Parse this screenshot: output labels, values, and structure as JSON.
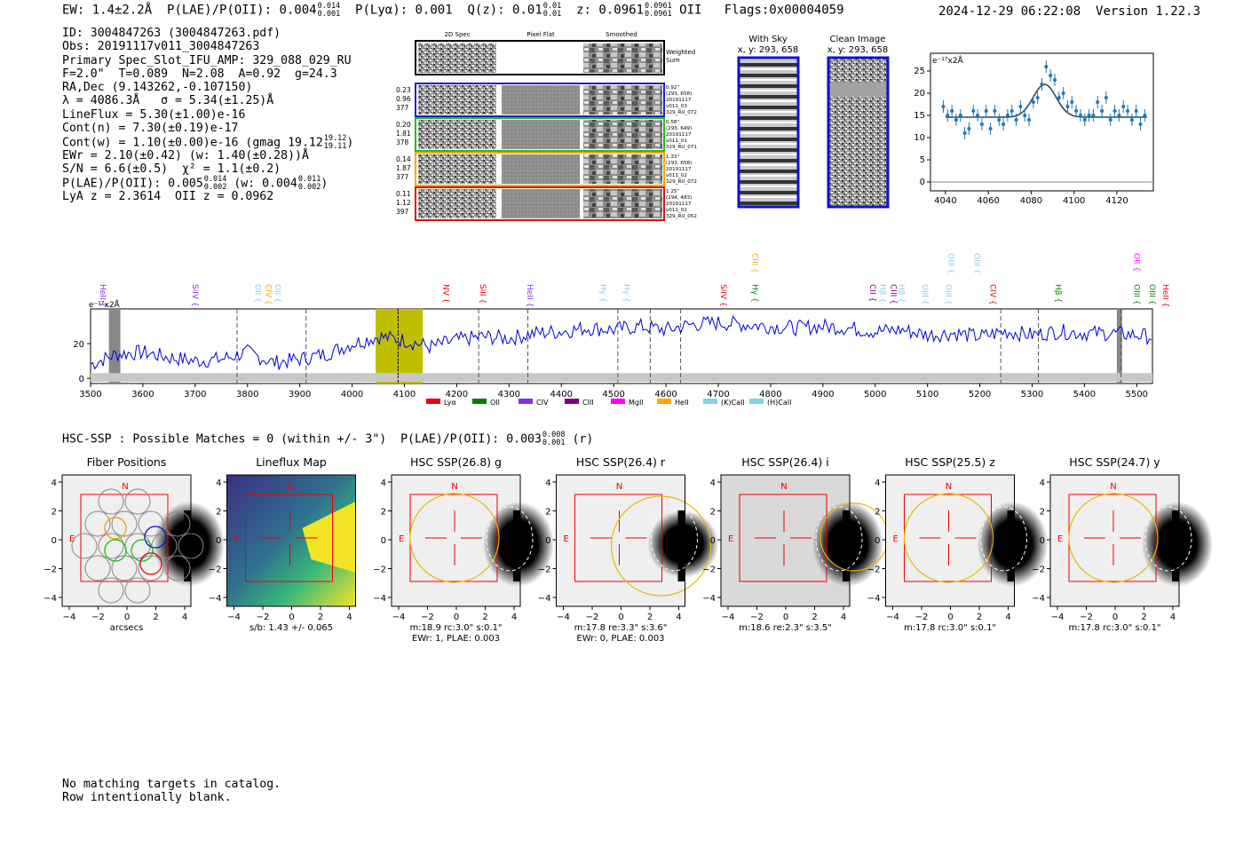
{
  "header": {
    "ew": "EW: 1.4±2.2Å",
    "plae_label": "P(LAE)/P(OII): 0.004",
    "plae_hi": "0.014",
    "plae_lo": "0.001",
    "plya": "P(Lyα): 0.001",
    "qz_label": "Q(z): 0.01",
    "qz_hi": "0.01",
    "qz_lo": "0.01",
    "z_label": "z: 0.0961",
    "z_hi": "0.0961",
    "z_lo": "0.0961",
    "z_line": "OII",
    "flags": "Flags:0x00004059",
    "timestamp": "2024-12-29 06:22:08",
    "version": "Version 1.22.3"
  },
  "info": {
    "id": "ID: 3004847263 (3004847263.pdf)",
    "obs": "Obs: 20191117v011_3004847263",
    "primary": "Primary Spec_Slot_IFU_AMP: 329_088_029_RU",
    "fparams": "F=2.0\"  T=0.089  N=2.08  A=0.92  g=24.3",
    "radec": "RA,Dec (9.143262,-0.107150)",
    "lambda": "λ = 4086.3Å   σ = 5.34(±1.25)Å",
    "lineflux": "LineFlux = 5.30(±1.00)e-16",
    "contn": "Cont(n) = 7.30(±0.19)e-17",
    "contw": "Cont(w) = 1.10(±0.00)e-16 (gmag 19.12",
    "gmag_hi": "19.12",
    "gmag_lo": "19.11",
    "ewr": "EWr = 2.10(±0.42) (w: 1.40(±0.28))Å",
    "sn": "S/N = 6.6(±0.5)  χ² = 1.1(±0.2)",
    "plae": "P(LAE)/P(OII): 0.005",
    "plae_hi": "0.014",
    "plae_lo": "0.002",
    "plae_w": "(w: 0.004",
    "plae_w_hi": "0.011",
    "plae_w_lo": "0.002",
    "lya": "LyA z = 2.3614  OII z = 0.0962"
  },
  "cutouts": {
    "col_2d": "2D Spec",
    "col_flat": "Pixel Flat",
    "col_smooth": "Smoothed",
    "weighted": "Weighted",
    "sum": "Sum",
    "rows": [
      {
        "left": [
          "0.23",
          "0.96",
          "377"
        ],
        "right": [
          "0.92\"",
          "(293, 658)",
          "20191117",
          "v011_03",
          "329_RU_072"
        ],
        "color": "#1f1fcc"
      },
      {
        "left": [
          "0.20",
          "1.81",
          "378"
        ],
        "right": [
          "0.58\"",
          "(293, 649)",
          "20191117",
          "v011_01",
          "329_RU_071"
        ],
        "color": "#22bb22"
      },
      {
        "left": [
          "0.14",
          "1.87",
          "377"
        ],
        "right": [
          "1.33\"",
          "(293, 658)",
          "20191117",
          "v011_02",
          "329_RU_072"
        ],
        "color": "#f5a800"
      },
      {
        "left": [
          "0.11",
          "1.12",
          "397"
        ],
        "right": [
          "1.25\"",
          "(294, 483)",
          "20191117",
          "v011_02",
          "329_RU_052"
        ],
        "color": "#dd1111"
      }
    ]
  },
  "sky": {
    "with_sky": "With Sky",
    "with_sky_xy": "x, y: 293, 658",
    "clean": "Clean Image",
    "clean_xy": "x, y: 293, 658"
  },
  "zoom_chart": {
    "ylabel": "e⁻¹⁷x2Å",
    "xticks": [
      "4040",
      "4060",
      "4080",
      "4100",
      "4120"
    ],
    "yticks": [
      "0",
      "5",
      "10",
      "15",
      "20",
      "25"
    ]
  },
  "lines_legend": [
    "Lyα",
    "OII",
    "CIV",
    "CIII",
    "MgII",
    "HeII",
    "(K)CaII",
    "(H)CaII"
  ],
  "lines_legend_colors": [
    "#e8000b",
    "#008000",
    "#8b2be2",
    "#800080",
    "#ff00ff",
    "#ffa500",
    "#87ceeb",
    "#87ceeb"
  ],
  "spec_lines": [
    {
      "name": "HeII",
      "w": 3514,
      "c": "#8b2be2"
    },
    {
      "name": "SiIV",
      "w": 3690,
      "c": "#8b2be2"
    },
    {
      "name": "OII",
      "w": 3810,
      "c": "#87ceeb"
    },
    {
      "name": "CIV",
      "w": 3830,
      "c": "#ffa500"
    },
    {
      "name": "OII",
      "w": 3848,
      "c": "#87ceeb"
    },
    {
      "name": "NV",
      "w": 4170,
      "c": "#e8000b"
    },
    {
      "name": "SiII",
      "w": 4240,
      "c": "#e8000b"
    },
    {
      "name": "HeII",
      "w": 4330,
      "c": "#8b2be2"
    },
    {
      "name": "Hγ",
      "w": 4470,
      "c": "#87ceeb"
    },
    {
      "name": "Hγ",
      "w": 4515,
      "c": "#87ceeb"
    },
    {
      "name": "SiIV",
      "w": 4700,
      "c": "#e8000b"
    },
    {
      "name": "CIII",
      "w": 4760,
      "c": "#ffa500"
    },
    {
      "name": "Hγ",
      "w": 4760,
      "c": "#008000"
    },
    {
      "name": "CII",
      "w": 4985,
      "c": "#800080"
    },
    {
      "name": "Hβ",
      "w": 5005,
      "c": "#87ceeb"
    },
    {
      "name": "CIII",
      "w": 5025,
      "c": "#800080"
    },
    {
      "name": "Hβ",
      "w": 5040,
      "c": "#87ceeb"
    },
    {
      "name": "OIII",
      "w": 5085,
      "c": "#87ceeb"
    },
    {
      "name": "OIII",
      "w": 5130,
      "c": "#87ceeb"
    },
    {
      "name": "OIII",
      "w": 5135,
      "c": "#87ceeb"
    },
    {
      "name": "OIII",
      "w": 5185,
      "c": "#87ceeb"
    },
    {
      "name": "CIV",
      "w": 5215,
      "c": "#e8000b"
    },
    {
      "name": "Hβ",
      "w": 5340,
      "c": "#008000"
    },
    {
      "name": "OII",
      "w": 5490,
      "c": "#ff00ff"
    },
    {
      "name": "OIII",
      "w": 5490,
      "c": "#008000"
    },
    {
      "name": "OIII",
      "w": 5520,
      "c": "#008000"
    },
    {
      "name": "HeII",
      "w": 5545,
      "c": "#e8000b"
    }
  ],
  "full_chart": {
    "ylabel": "e⁻¹⁷x2Å",
    "xticks": [
      "3500",
      "3600",
      "3700",
      "3800",
      "3900",
      "4000",
      "4100",
      "4200",
      "4300",
      "4400",
      "4500",
      "4600",
      "4700",
      "4800",
      "4900",
      "5000",
      "5100",
      "5200",
      "5300",
      "5400",
      "5500"
    ],
    "yticks": [
      "0",
      "20"
    ],
    "dashed": [
      3780,
      3912,
      4088,
      4242,
      4336,
      4508,
      4570,
      4628,
      5240,
      5312,
      5470
    ]
  },
  "hsc": {
    "line": "HSC-SSP : Possible Matches = 0 (within +/- 3\")  P(LAE)/P(OII): 0.003",
    "hi": "0.008",
    "lo": "0.001",
    "band": "(r)",
    "panels": [
      {
        "title": "Fiber Positions",
        "cap1": "arcsecs",
        "cap2": ""
      },
      {
        "title": "Lineflux Map",
        "cap1": "s/b: 1.43 +/- 0.065",
        "cap2": ""
      },
      {
        "title": "HSC SSP(26.8) g",
        "cap1": "m:18.9 rc:3.0\"  s:0.1\"",
        "cap2": "EWr: 1, PLAE: 0.003"
      },
      {
        "title": "HSC SSP(26.4) r",
        "cap1": "m:17.8  re:3.3\"  s:3.6\"",
        "cap2": "EWr: 0, PLAE: 0.003"
      },
      {
        "title": "HSC SSP(26.4) i",
        "cap1": "m:18.6  re:2.3\"  s:3.5\"",
        "cap2": ""
      },
      {
        "title": "HSC SSP(25.5) z",
        "cap1": "m:17.8 rc:3.0\"  s:0.1\"",
        "cap2": ""
      },
      {
        "title": "HSC SSP(24.7) y",
        "cap1": "m:17.8 rc:3.0\"  s:0.1\"",
        "cap2": ""
      }
    ],
    "axis_ticks": [
      "−4",
      "−2",
      "0",
      "2",
      "4"
    ],
    "north": "N",
    "east": "E"
  },
  "footer": {
    "line1": "No matching targets in catalog.",
    "line2": "Row intentionally blank."
  },
  "chart_data": [
    {
      "type": "scatter",
      "title": "",
      "xlabel": "",
      "ylabel": "e⁻¹⁷x2Å",
      "xlim": [
        4033,
        4137
      ],
      "ylim": [
        -2,
        29
      ],
      "x": [
        4039,
        4041,
        4043,
        4045,
        4047,
        4049,
        4051,
        4053,
        4055,
        4057,
        4059,
        4061,
        4063,
        4065,
        4067,
        4069,
        4071,
        4073,
        4075,
        4077,
        4079,
        4081,
        4083,
        4085,
        4087,
        4089,
        4091,
        4093,
        4095,
        4097,
        4099,
        4101,
        4103,
        4105,
        4107,
        4109,
        4111,
        4113,
        4115,
        4117,
        4119,
        4121,
        4123,
        4125,
        4127,
        4129,
        4131,
        4133
      ],
      "values": [
        17,
        15,
        16,
        14,
        15,
        11,
        12,
        16,
        15,
        13,
        16,
        12,
        16,
        14,
        13,
        15,
        16,
        14,
        17,
        15,
        14,
        18,
        19,
        22,
        26,
        24,
        23,
        19,
        20,
        17,
        18,
        16,
        15,
        14,
        15,
        15,
        18,
        16,
        19,
        14,
        16,
        15,
        17,
        16,
        14,
        16,
        13,
        15
      ],
      "model": {
        "continuum": 14.6,
        "amplitude": 7.4,
        "center": 4086.3,
        "sigma": 5.34
      }
    },
    {
      "type": "line",
      "title": "",
      "xlabel": "",
      "ylabel": "e⁻¹⁷x2Å",
      "xlim": [
        3500,
        5530
      ],
      "ylim": [
        -3,
        40
      ],
      "x": [
        3500,
        3550,
        3600,
        3650,
        3700,
        3750,
        3800,
        3850,
        3900,
        3950,
        4000,
        4050,
        4100,
        4150,
        4200,
        4250,
        4300,
        4350,
        4400,
        4450,
        4500,
        4550,
        4600,
        4650,
        4700,
        4750,
        4800,
        4850,
        4900,
        4950,
        5000,
        5050,
        5100,
        5150,
        5200,
        5250,
        5300,
        5350,
        5400,
        5450,
        5500,
        5530
      ],
      "values": [
        8,
        14,
        15,
        12,
        10,
        11,
        15,
        9,
        11,
        14,
        20,
        24,
        22,
        18,
        22,
        24,
        23,
        26,
        27,
        29,
        28,
        30,
        28,
        31,
        32,
        31,
        30,
        29,
        30,
        29,
        27,
        28,
        25,
        26,
        24,
        27,
        25,
        27,
        26,
        26,
        25,
        24
      ],
      "highlight": [
        4045,
        4135
      ]
    }
  ]
}
